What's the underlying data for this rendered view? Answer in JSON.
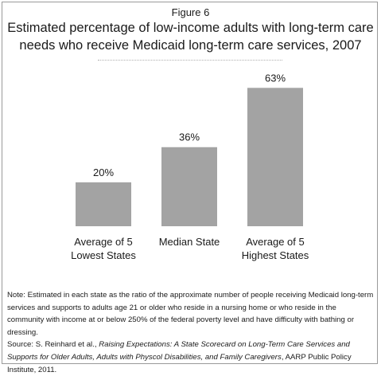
{
  "figure_label": "Figure 6",
  "chart_data": {
    "type": "bar",
    "title_line1": "Estimated percentage of low-income adults with long-term care",
    "title_line2": "needs who receive Medicaid long-term care services, 2007",
    "categories": [
      [
        "Average of 5",
        "Lowest States"
      ],
      [
        "Median State"
      ],
      [
        "Average of 5",
        "Highest States"
      ]
    ],
    "values": [
      20,
      36,
      63
    ],
    "data_labels": [
      "20%",
      "36%",
      "63%"
    ],
    "ylim": [
      0,
      70
    ],
    "grid": false,
    "bar_color": "#a3a3a3"
  },
  "note": {
    "text": "Note:  Estimated in each state as the ratio of the approximate number of people receiving Medicaid long-term services and supports to adults age 21 or older who reside in a nursing home or who reside in the community with income at or below 250% of the federal poverty level and have difficulty with bathing or dressing.",
    "source_prefix": "Source: S. Reinhard et al., ",
    "source_title": "Raising Expectations: A State Scorecard on Long-Term Care Services and Supports for Older Adults, Adults with Physcol Disabilities, and Family Caregivers",
    "source_suffix": ", AARP Public Policy Institute, 2011."
  }
}
